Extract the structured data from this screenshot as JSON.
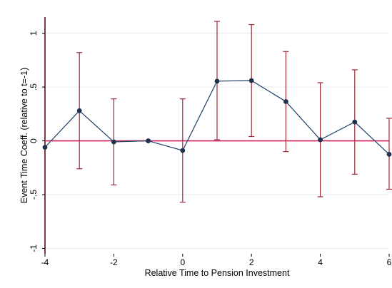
{
  "chart_data": {
    "type": "line",
    "title": "",
    "xlabel": "Relative Time to Pension Investment",
    "ylabel": "Event Time Coeff. (relative to t=-1)",
    "xlim": [
      -4,
      6
    ],
    "ylim": [
      -1.05,
      1.15
    ],
    "xticks": [
      -4,
      -2,
      0,
      2,
      4,
      6
    ],
    "xtick_labels": [
      "-4",
      "-2",
      "0",
      "2",
      "4",
      "6"
    ],
    "yticks": [
      -1,
      -0.5,
      0,
      0.5,
      1
    ],
    "ytick_labels": [
      "-1",
      "-.5",
      "0",
      ".5",
      "1"
    ],
    "grid": "horizontal",
    "reference_line": 0,
    "series": [
      {
        "x": [
          -4,
          -3,
          -2,
          -1,
          0,
          1,
          2,
          3,
          4,
          5,
          6
        ],
        "y": [
          -0.06,
          0.28,
          -0.01,
          0.0,
          -0.09,
          0.555,
          0.56,
          0.365,
          0.01,
          0.175,
          -0.125
        ],
        "ci_low": [
          null,
          -0.26,
          -0.41,
          null,
          -0.57,
          0.01,
          0.04,
          -0.1,
          -0.52,
          -0.31,
          -0.45
        ],
        "ci_high": [
          null,
          0.82,
          0.39,
          null,
          0.39,
          1.11,
          1.08,
          0.83,
          0.54,
          0.66,
          0.21
        ]
      }
    ],
    "colors": {
      "line": "#1f3d66",
      "marker": "#1e3250",
      "ci": "#9b2a3a",
      "reference": "#c4265e",
      "grid": "#e6ebef",
      "axis": "#5a0c1f"
    }
  }
}
